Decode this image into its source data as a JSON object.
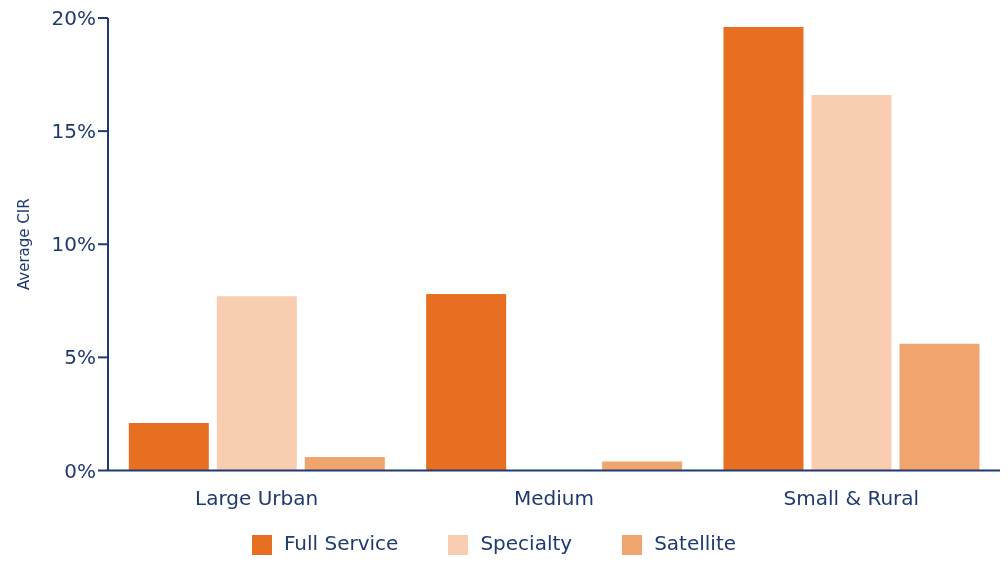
{
  "chart_data": {
    "type": "bar",
    "ylabel": "Average CIR",
    "categories": [
      "Large Urban",
      "Medium",
      "Small & Rural"
    ],
    "series": [
      {
        "name": "Full Service",
        "color": "#e86f22",
        "values": [
          2.1,
          7.8,
          19.6
        ]
      },
      {
        "name": "Specialty",
        "color": "#f9cdb0",
        "values": [
          7.7,
          0,
          16.6
        ]
      },
      {
        "name": "Satellite",
        "color": "#f0a46e",
        "values": [
          0.6,
          0.4,
          5.6
        ]
      }
    ],
    "ylim": [
      0,
      20
    ],
    "yticks": [
      {
        "value": 0,
        "label": "0%"
      },
      {
        "value": 5,
        "label": "5%"
      },
      {
        "value": 10,
        "label": "10%"
      },
      {
        "value": 15,
        "label": "15%"
      },
      {
        "value": 20,
        "label": "20%"
      }
    ],
    "grid": false,
    "legend": "bottom"
  }
}
